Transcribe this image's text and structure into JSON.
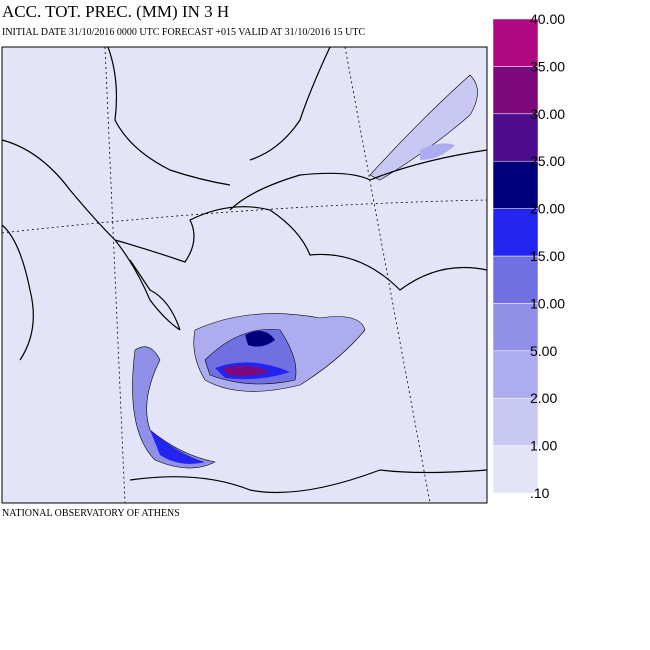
{
  "header": {
    "title": "ACC. TOT. PREC. (MM) IN 3 H",
    "subtitle": "INITIAL DATE 31/10/2016   0000 UTC FORECAST +015 VALID AT  31/10/2016  15 UTC"
  },
  "footer": "NATIONAL OBSERVATORY OF ATHENS",
  "legend": {
    "levels": [
      {
        "value": 0.1,
        "label": ".10"
      },
      {
        "value": 1,
        "label": "1.00"
      },
      {
        "value": 2,
        "label": "2.00"
      },
      {
        "value": 5,
        "label": "5.00"
      },
      {
        "value": 10,
        "label": "10.00"
      },
      {
        "value": 15,
        "label": "15.00"
      },
      {
        "value": 20,
        "label": "20.00"
      },
      {
        "value": 25,
        "label": "25.00"
      },
      {
        "value": 30,
        "label": "30.00"
      },
      {
        "value": 35,
        "label": "35.00"
      },
      {
        "value": 40,
        "label": "40.00"
      }
    ],
    "colors": [
      "#e4e4f8",
      "#c8c8f2",
      "#acacee",
      "#9090e8",
      "#7070e2",
      "#2424f0",
      "#00007c",
      "#4c0c8c",
      "#7c0a7c",
      "#b00880"
    ]
  }
}
